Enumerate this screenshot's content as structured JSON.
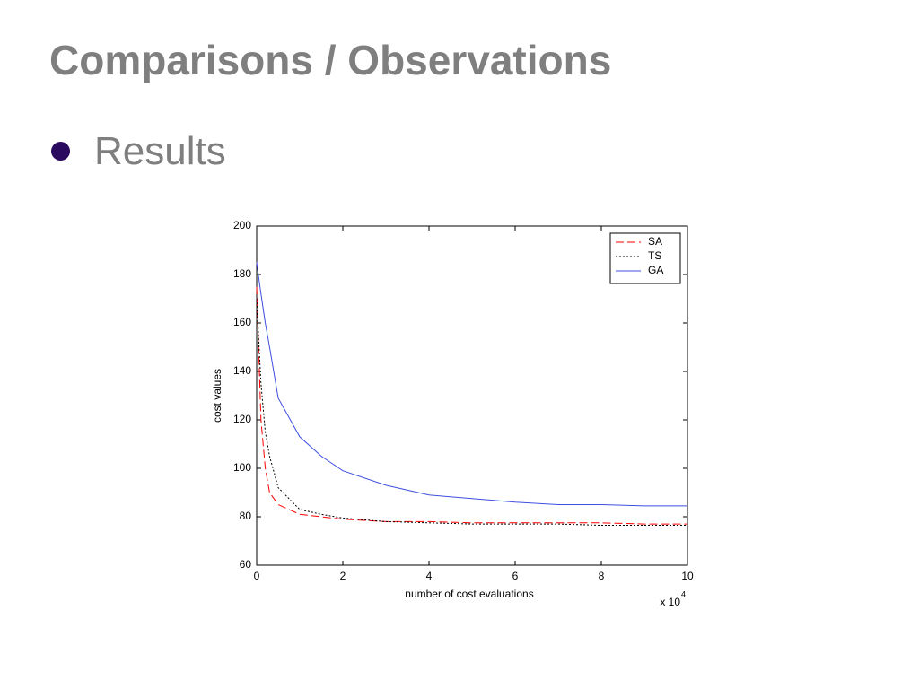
{
  "slide": {
    "title": "Comparisons / Observations",
    "bullet": "Results"
  },
  "chart_data": {
    "type": "line",
    "x": [
      0,
      0.1,
      0.2,
      0.3,
      0.5,
      1,
      1.5,
      2,
      3,
      4,
      5,
      6,
      7,
      8,
      9,
      10
    ],
    "series": [
      {
        "name": "SA",
        "color": "#ff0000",
        "style": "dashed",
        "values": [
          175,
          120,
          100,
          90,
          85,
          81,
          80,
          79,
          78,
          78,
          77.5,
          77.5,
          77.5,
          77.5,
          77,
          77
        ]
      },
      {
        "name": "TS",
        "color": "#000000",
        "style": "dotted",
        "values": [
          170,
          135,
          115,
          105,
          92,
          83,
          81,
          79.5,
          78,
          77.5,
          77,
          77,
          77,
          76.5,
          76.5,
          76.5
        ]
      },
      {
        "name": "GA",
        "color": "#3d4fe0",
        "style": "solid",
        "values": [
          185,
          172,
          160,
          150,
          129,
          113,
          105,
          99,
          93,
          89,
          87.5,
          86,
          85,
          85,
          84.5,
          84.5
        ]
      }
    ],
    "xlim": [
      0,
      10
    ],
    "xticks": [
      0,
      2,
      4,
      6,
      8,
      10
    ],
    "ylim": [
      60,
      200
    ],
    "yticks": [
      60,
      80,
      100,
      120,
      140,
      160,
      180,
      200
    ],
    "xlabel": "number of cost evaluations",
    "ylabel": "cost values",
    "x_multiplier": "x 10",
    "x_exponent": "4",
    "legend": "northeast"
  }
}
